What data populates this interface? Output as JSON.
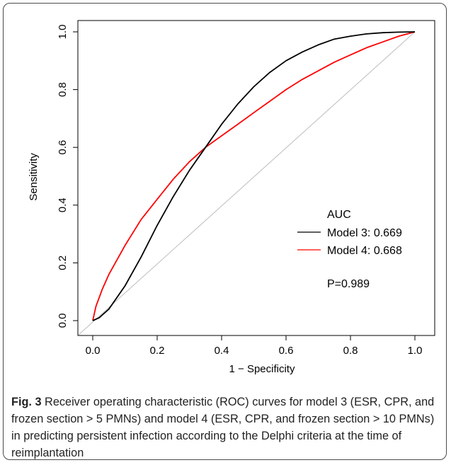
{
  "caption": {
    "label": "Fig. 3",
    "text": " Receiver operating characteristic (ROC) curves for model 3 (ESR, CPR, and frozen section > 5 PMNs) and model 4 (ESR, CPR, and frozen section > 10 PMNs) in predicting persistent infection according to the Delphi criteria at the time of reimplantation"
  },
  "chart_data": {
    "type": "line",
    "title": "",
    "xlabel": "1 − Specificity",
    "ylabel": "Sensitivity",
    "xlim": [
      0,
      1
    ],
    "ylim": [
      0,
      1
    ],
    "xticks": [
      "0.0",
      "0.2",
      "0.4",
      "0.6",
      "0.8",
      "1.0"
    ],
    "yticks": [
      "0.0",
      "0.2",
      "0.4",
      "0.6",
      "0.8",
      "1.0"
    ],
    "grid": false,
    "legend": {
      "title": "AUC",
      "position": "right-center",
      "note": "P=0.989"
    },
    "series": [
      {
        "name": "Model 3: 0.669",
        "color": "#000000",
        "x": [
          0,
          0.02,
          0.05,
          0.1,
          0.15,
          0.2,
          0.25,
          0.3,
          0.35,
          0.4,
          0.45,
          0.5,
          0.55,
          0.6,
          0.65,
          0.7,
          0.75,
          0.8,
          0.85,
          0.9,
          0.95,
          1.0
        ],
        "y": [
          0,
          0.01,
          0.04,
          0.12,
          0.22,
          0.33,
          0.43,
          0.52,
          0.6,
          0.68,
          0.75,
          0.81,
          0.86,
          0.9,
          0.93,
          0.955,
          0.975,
          0.985,
          0.993,
          0.997,
          0.999,
          1.0
        ]
      },
      {
        "name": "Model 4: 0.668",
        "color": "#ff0000",
        "x": [
          0,
          0.01,
          0.03,
          0.05,
          0.1,
          0.15,
          0.2,
          0.25,
          0.3,
          0.35,
          0.4,
          0.45,
          0.5,
          0.55,
          0.6,
          0.65,
          0.7,
          0.75,
          0.8,
          0.85,
          0.9,
          0.95,
          1.0
        ],
        "y": [
          0,
          0.05,
          0.11,
          0.16,
          0.26,
          0.35,
          0.42,
          0.49,
          0.55,
          0.6,
          0.64,
          0.68,
          0.72,
          0.76,
          0.8,
          0.835,
          0.865,
          0.895,
          0.92,
          0.945,
          0.965,
          0.985,
          1.0
        ]
      },
      {
        "name": "",
        "color": "#bdbdbd",
        "x": [
          -0.05,
          1.0
        ],
        "y": [
          -0.05,
          1.0
        ]
      }
    ]
  }
}
